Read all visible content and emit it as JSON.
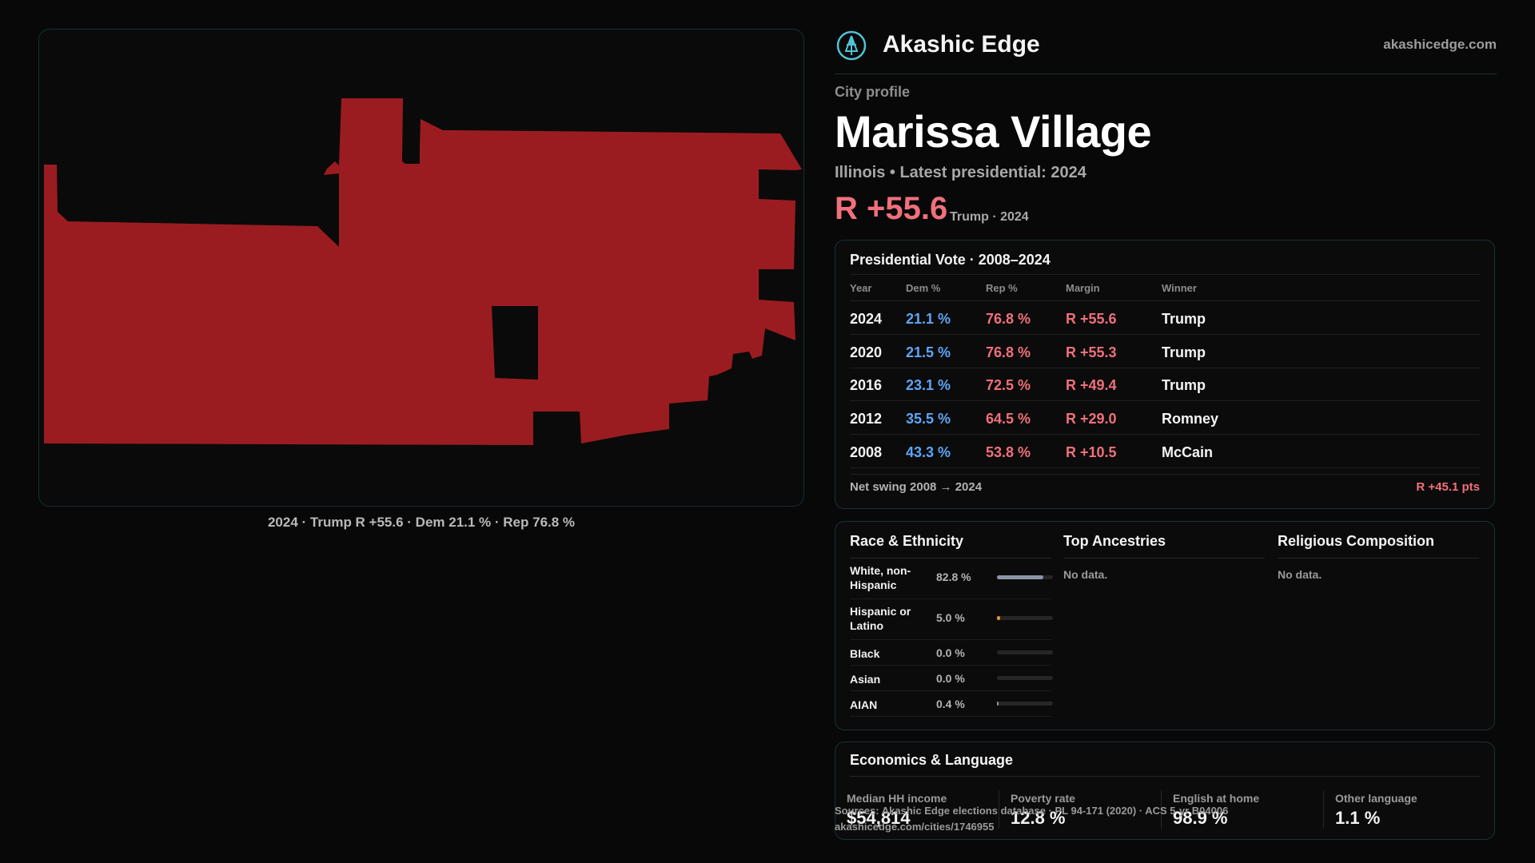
{
  "brand": {
    "name": "Akashic Edge",
    "url": "akashicedge.com",
    "logo_icon": "tree-emblem-icon"
  },
  "profile": {
    "kicker": "City profile",
    "name": "Marissa Village",
    "subtitle": "Illinois • Latest presidential: 2024",
    "headline_margin": "R +55.6",
    "headline_sub": "Trump · 2024"
  },
  "map": {
    "fill_color": "#9b1c20",
    "caption": "2024 · Trump R +55.6 · Dem 21.1 % · Rep 76.8 %"
  },
  "vote_table": {
    "title": "Presidential Vote · 2008–2024",
    "headers": {
      "year": "Year",
      "dem": "Dem %",
      "rep": "Rep %",
      "margin": "Margin",
      "winner": "Winner"
    },
    "rows": [
      {
        "year": "2024",
        "dem": "21.1 %",
        "rep": "76.8 %",
        "margin": "R +55.6",
        "winner": "Trump"
      },
      {
        "year": "2020",
        "dem": "21.5 %",
        "rep": "76.8 %",
        "margin": "R +55.3",
        "winner": "Trump"
      },
      {
        "year": "2016",
        "dem": "23.1 %",
        "rep": "72.5 %",
        "margin": "R +49.4",
        "winner": "Trump"
      },
      {
        "year": "2012",
        "dem": "35.5 %",
        "rep": "64.5 %",
        "margin": "R +29.0",
        "winner": "Romney"
      },
      {
        "year": "2008",
        "dem": "43.3 %",
        "rep": "53.8 %",
        "margin": "R +10.5",
        "winner": "McCain"
      }
    ],
    "swing_label": "Net swing 2008 → 2024",
    "swing_value": "R +45.1 pts"
  },
  "race": {
    "title": "Race & Ethnicity",
    "rows": [
      {
        "label": "White, non-Hispanic",
        "pct": "82.8 %",
        "value": 0.828,
        "color": "#8b95a5"
      },
      {
        "label": "Hispanic or Latino",
        "pct": "5.0 %",
        "value": 0.05,
        "color": "#e0942a"
      },
      {
        "label": "Black",
        "pct": "0.0 %",
        "value": 0.0,
        "color": "#8b95a5"
      },
      {
        "label": "Asian",
        "pct": "0.0 %",
        "value": 0.0,
        "color": "#8b95a5"
      },
      {
        "label": "AIAN",
        "pct": "0.4 %",
        "value": 0.004,
        "color": "#8b95a5"
      }
    ]
  },
  "ancestries": {
    "title": "Top Ancestries",
    "empty": "No data."
  },
  "religion": {
    "title": "Religious Composition",
    "empty": "No data."
  },
  "economics": {
    "title": "Economics & Language",
    "stats": [
      {
        "label": "Median HH income",
        "value": "$54,814"
      },
      {
        "label": "Poverty rate",
        "value": "12.8 %"
      },
      {
        "label": "English at home",
        "value": "98.9 %"
      },
      {
        "label": "Other language",
        "value": "1.1 %"
      }
    ]
  },
  "footer": {
    "source": "Sources: Akashic Edge elections database · PL 94-171 (2020) · ACS 5-yr B04006",
    "link": "akashicedge.com/cities/1746955"
  }
}
